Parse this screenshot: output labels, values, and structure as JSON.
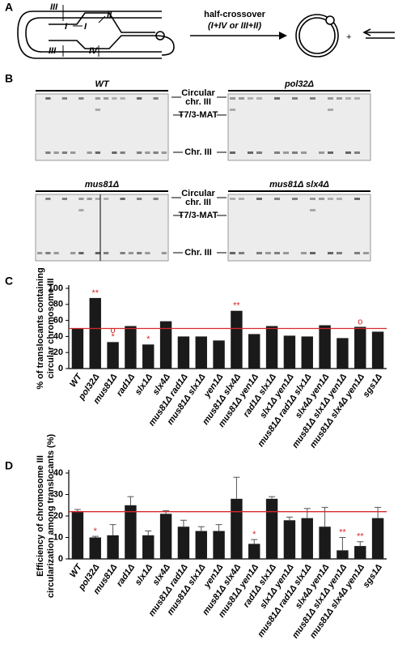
{
  "panel_a": {
    "label": "A",
    "strand_labels": [
      "III",
      "I",
      "I",
      "II",
      "III",
      "IV"
    ],
    "arrow_text": [
      "half-crossover",
      "(I+IV or III+II)"
    ],
    "plus": "+"
  },
  "panel_b": {
    "label": "B",
    "rows": [
      {
        "gels": [
          "WT",
          "pol32Δ"
        ],
        "band_labels": [
          "Circular",
          "chr. III",
          "T7/3-MAT",
          "Chr. III"
        ]
      },
      {
        "gels": [
          "mus81Δ",
          "mus81Δ slx4Δ"
        ],
        "band_labels": [
          "Circular",
          "chr. III",
          "T7/3-MAT",
          "Chr. III"
        ]
      }
    ]
  },
  "chart_data": [
    {
      "type": "bar",
      "panel_label": "C",
      "ylabel": [
        "% of translocants containing",
        "circular chromosome III"
      ],
      "categories": [
        "WT",
        "pol32Δ",
        "mus81Δ",
        "rad1Δ",
        "slx1Δ",
        "slx4Δ",
        "mus81Δ rad1Δ",
        "mus81Δ slx1Δ",
        "yen1Δ",
        "mus81Δ slx4Δ",
        "mus81Δ yen1Δ",
        "rad1Δ slx1Δ",
        "slx1Δ yen1Δ",
        "mus81Δ rad1Δ slx1Δ",
        "slx4Δ yen1Δ",
        "mus81Δ slx1Δ yen1Δ",
        "mus81Δ slx4Δ yen1Δ",
        "sgs1Δ"
      ],
      "values": [
        50,
        88,
        33,
        53,
        30,
        59,
        40,
        40,
        35,
        72,
        43,
        53,
        41,
        40,
        54,
        38,
        52,
        46
      ],
      "color": "#1a1a1a",
      "reference_line": 50,
      "reference_color": "#d42a2a",
      "ylim": [
        0,
        100
      ],
      "yticks": [
        0,
        20,
        40,
        60,
        80,
        100
      ],
      "annotations": [
        {
          "category": "pol32Δ",
          "text": "**"
        },
        {
          "category": "mus81Δ",
          "text": "*"
        },
        {
          "category": "mus81Δ",
          "text": "o"
        },
        {
          "category": "slx1Δ",
          "text": "*"
        },
        {
          "category": "mus81Δ slx4Δ",
          "text": "**"
        },
        {
          "category": "mus81Δ slx4Δ yen1Δ",
          "text": "o"
        }
      ]
    },
    {
      "type": "bar",
      "panel_label": "D",
      "ylabel": [
        "Efficiency of chromosome III",
        "circularization among translocants (%)"
      ],
      "categories": [
        "WT",
        "pol32Δ",
        "mus81Δ",
        "rad1Δ",
        "slx1Δ",
        "slx4Δ",
        "mus81Δ rad1Δ",
        "mus81Δ slx1Δ",
        "yen1Δ",
        "mus81Δ slx4Δ",
        "mus81Δ yen1Δ",
        "rad1Δ slx1Δ",
        "slx1Δ yen1Δ",
        "mus81Δ rad1Δ slx1Δ",
        "slx4Δ yen1Δ",
        "mus81Δ slx1Δ yen1Δ",
        "mus81Δ slx4Δ yen1Δ",
        "sgs1Δ"
      ],
      "values": [
        22,
        10,
        11,
        25,
        11,
        21,
        15,
        13,
        13,
        28,
        7,
        28,
        18,
        19,
        15,
        4,
        6,
        19
      ],
      "errors": [
        1,
        0.5,
        5,
        4,
        2,
        1.5,
        3,
        2,
        3,
        10,
        2,
        1,
        1.5,
        4.5,
        9,
        6,
        2,
        5
      ],
      "color": "#1a1a1a",
      "reference_line": 22,
      "reference_color": "#d42a2a",
      "ylim": [
        0,
        40
      ],
      "yticks": [
        0,
        10,
        20,
        30,
        40
      ],
      "annotations": [
        {
          "category": "pol32Δ",
          "text": "*"
        },
        {
          "category": "mus81Δ yen1Δ",
          "text": "*"
        },
        {
          "category": "mus81Δ slx1Δ yen1Δ",
          "text": "**"
        },
        {
          "category": "mus81Δ slx4Δ yen1Δ",
          "text": "**"
        }
      ]
    }
  ]
}
